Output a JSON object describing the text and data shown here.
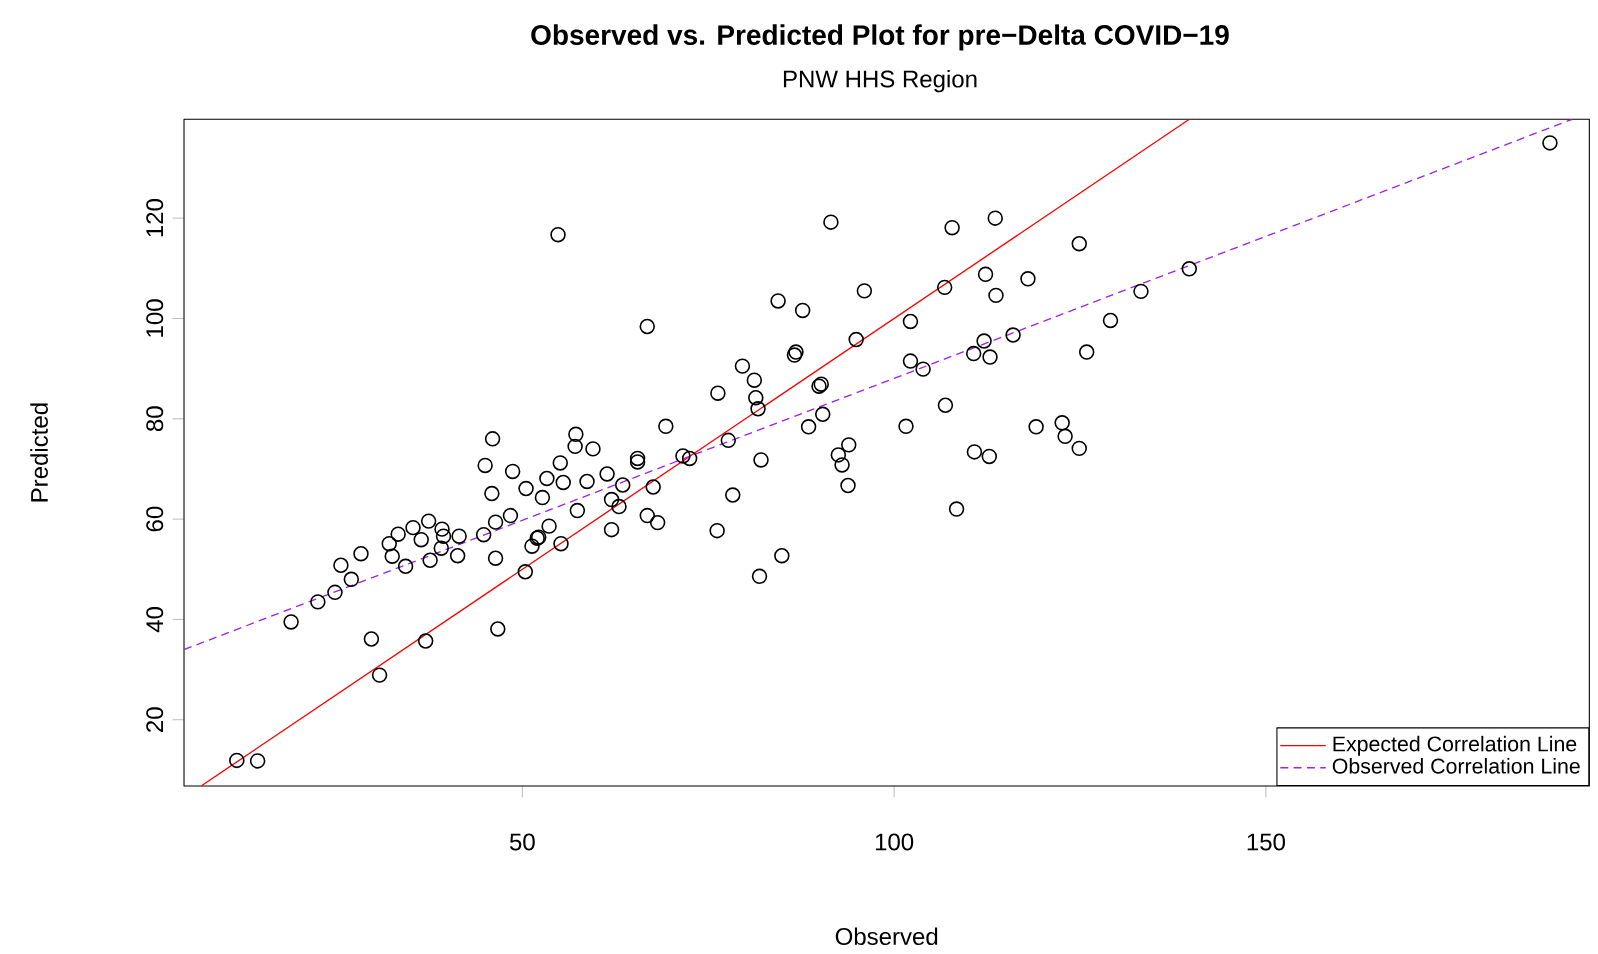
{
  "chart_data": {
    "type": "scatter",
    "title": "Observed vs. Predicted Plot for pre−Delta COVID−19",
    "subtitle": "PNW HHS Region",
    "xlabel": "Observed",
    "ylabel": "Predicted",
    "xlim": [
      4.5,
      193.5
    ],
    "ylim": [
      6.8,
      139.7
    ],
    "xticks": [
      50,
      100,
      150
    ],
    "yticks": [
      20,
      40,
      60,
      80,
      100,
      120
    ],
    "grid": false,
    "legend": "bottom right",
    "series": [
      {
        "color": "#000000",
        "marker": "circle",
        "x": [
          54.8,
          11.6,
          14.4,
          18.9,
          22.5,
          24.8,
          25.6,
          27.0,
          28.3,
          29.7,
          30.8,
          32.1,
          32.5,
          33.3,
          34.3,
          35.3,
          36.4,
          37.0,
          37.4,
          37.6,
          39.2,
          39.4,
          39.1,
          41.3,
          41.5,
          45.0,
          44.8,
          46.0,
          45.9,
          46.4,
          46.4,
          46.7,
          48.4,
          48.7,
          50.4,
          50.5,
          51.3,
          52.0,
          52.2,
          52.7,
          53.3,
          53.6,
          55.1,
          55.2,
          55.5,
          57.2,
          57.1,
          57.4,
          58.7,
          59.5,
          61.4,
          62.0,
          62.0,
          63.0,
          63.5,
          65.5,
          65.5,
          67.6,
          66.8,
          66.8,
          68.2,
          69.3,
          71.6,
          72.5,
          76.2,
          76.3,
          77.7,
          78.3,
          79.6,
          81.2,
          81.4,
          81.7,
          82.1,
          81.9,
          84.4,
          84.9,
          86.6,
          86.8,
          87.7,
          88.5,
          89.9,
          90.2,
          90.4,
          91.5,
          92.5,
          93.0,
          93.9,
          93.8,
          94.9,
          96.0,
          101.6,
          102.2,
          102.2,
          103.9,
          106.8,
          106.9,
          107.8,
          108.4,
          110.7,
          112.1,
          112.9,
          110.8,
          112.8,
          112.3,
          113.6,
          113.7,
          116.0,
          118.0,
          119.1,
          122.6,
          123.0,
          124.9,
          124.9,
          125.9,
          129.1,
          133.2,
          139.7,
          188.2
        ],
        "values": [
          116.7,
          11.9,
          11.8,
          39.5,
          43.5,
          45.4,
          50.8,
          48.0,
          53.1,
          36.1,
          28.9,
          55.1,
          52.6,
          57.0,
          50.6,
          58.3,
          55.9,
          35.7,
          59.6,
          51.8,
          58.0,
          56.6,
          54.2,
          52.7,
          56.6,
          70.7,
          56.9,
          76.0,
          65.1,
          52.2,
          59.4,
          38.1,
          60.7,
          69.5,
          49.5,
          66.1,
          54.6,
          56.2,
          56.4,
          64.3,
          68.1,
          58.6,
          71.2,
          55.1,
          67.3,
          76.9,
          74.5,
          61.7,
          67.5,
          74.0,
          69.0,
          63.9,
          57.9,
          62.5,
          66.8,
          72.1,
          71.4,
          66.4,
          98.4,
          60.7,
          59.3,
          78.5,
          72.6,
          72.1,
          57.7,
          85.1,
          75.7,
          64.8,
          90.5,
          87.7,
          84.2,
          82.0,
          71.8,
          48.6,
          103.5,
          52.7,
          92.7,
          93.3,
          101.6,
          78.4,
          86.5,
          86.9,
          80.9,
          119.2,
          72.8,
          70.8,
          74.8,
          66.7,
          95.8,
          105.5,
          78.5,
          99.4,
          91.5,
          89.9,
          106.2,
          82.7,
          118.1,
          62.0,
          93.0,
          95.5,
          92.3,
          73.4,
          72.5,
          108.8,
          120.0,
          104.6,
          96.7,
          107.9,
          78.4,
          79.2,
          76.5,
          74.1,
          114.9,
          93.3,
          99.6,
          105.4,
          109.9,
          135.0
        ]
      },
      {
        "type": "line",
        "name": "Expected Correlation Line",
        "color": "#ff0000",
        "line_style": "solid",
        "marker": "none",
        "x": [
          6.8,
          139.7
        ],
        "values": [
          6.8,
          139.7
        ]
      },
      {
        "type": "line",
        "name": "Observed Correlation Line",
        "color": "#a020f0",
        "line_style": "dashed",
        "marker": "none",
        "x": [
          4.5,
          191.2
        ],
        "values": [
          34.0,
          139.7
        ]
      }
    ]
  }
}
